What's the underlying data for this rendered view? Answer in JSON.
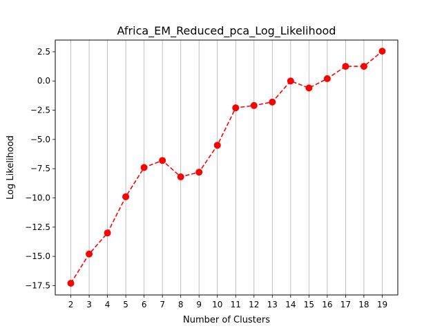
{
  "chart_data": {
    "type": "line",
    "title": "Africa_EM_Reduced_pca_Log_Likelihood",
    "xlabel": "Number of Clusters",
    "ylabel": "Log Likelihood",
    "x": [
      2,
      3,
      4,
      5,
      6,
      7,
      8,
      9,
      10,
      11,
      12,
      13,
      14,
      15,
      16,
      17,
      18,
      19
    ],
    "series": [
      {
        "values": [
          -17.3,
          -14.8,
          -13.0,
          -9.9,
          -7.4,
          -6.8,
          -8.2,
          -7.8,
          -5.5,
          -2.3,
          -2.1,
          -1.8,
          0.0,
          -0.6,
          0.2,
          1.25,
          1.25,
          2.55
        ],
        "color": "#ff0000",
        "line_style": "dashed",
        "marker": "circle"
      }
    ],
    "xticks": [
      "2",
      "3",
      "4",
      "5",
      "6",
      "7",
      "8",
      "9",
      "10",
      "11",
      "12",
      "13",
      "14",
      "15",
      "16",
      "17",
      "18",
      "19"
    ],
    "yticks": [
      {
        "value": -17.5,
        "label": "−17.5"
      },
      {
        "value": -15.0,
        "label": "−15.0"
      },
      {
        "value": -12.5,
        "label": "−12.5"
      },
      {
        "value": -10.0,
        "label": "−10.0"
      },
      {
        "value": -7.5,
        "label": "−7.5"
      },
      {
        "value": -5.0,
        "label": "−5.0"
      },
      {
        "value": -2.5,
        "label": "−2.5"
      },
      {
        "value": 0.0,
        "label": "0.0"
      },
      {
        "value": 2.5,
        "label": "2.5"
      }
    ],
    "xlim": [
      1.15,
      19.85
    ],
    "ylim": [
      -18.3,
      3.5
    ],
    "grid": "vertical",
    "grid_color": "#b0b0b0",
    "legend": "none"
  }
}
